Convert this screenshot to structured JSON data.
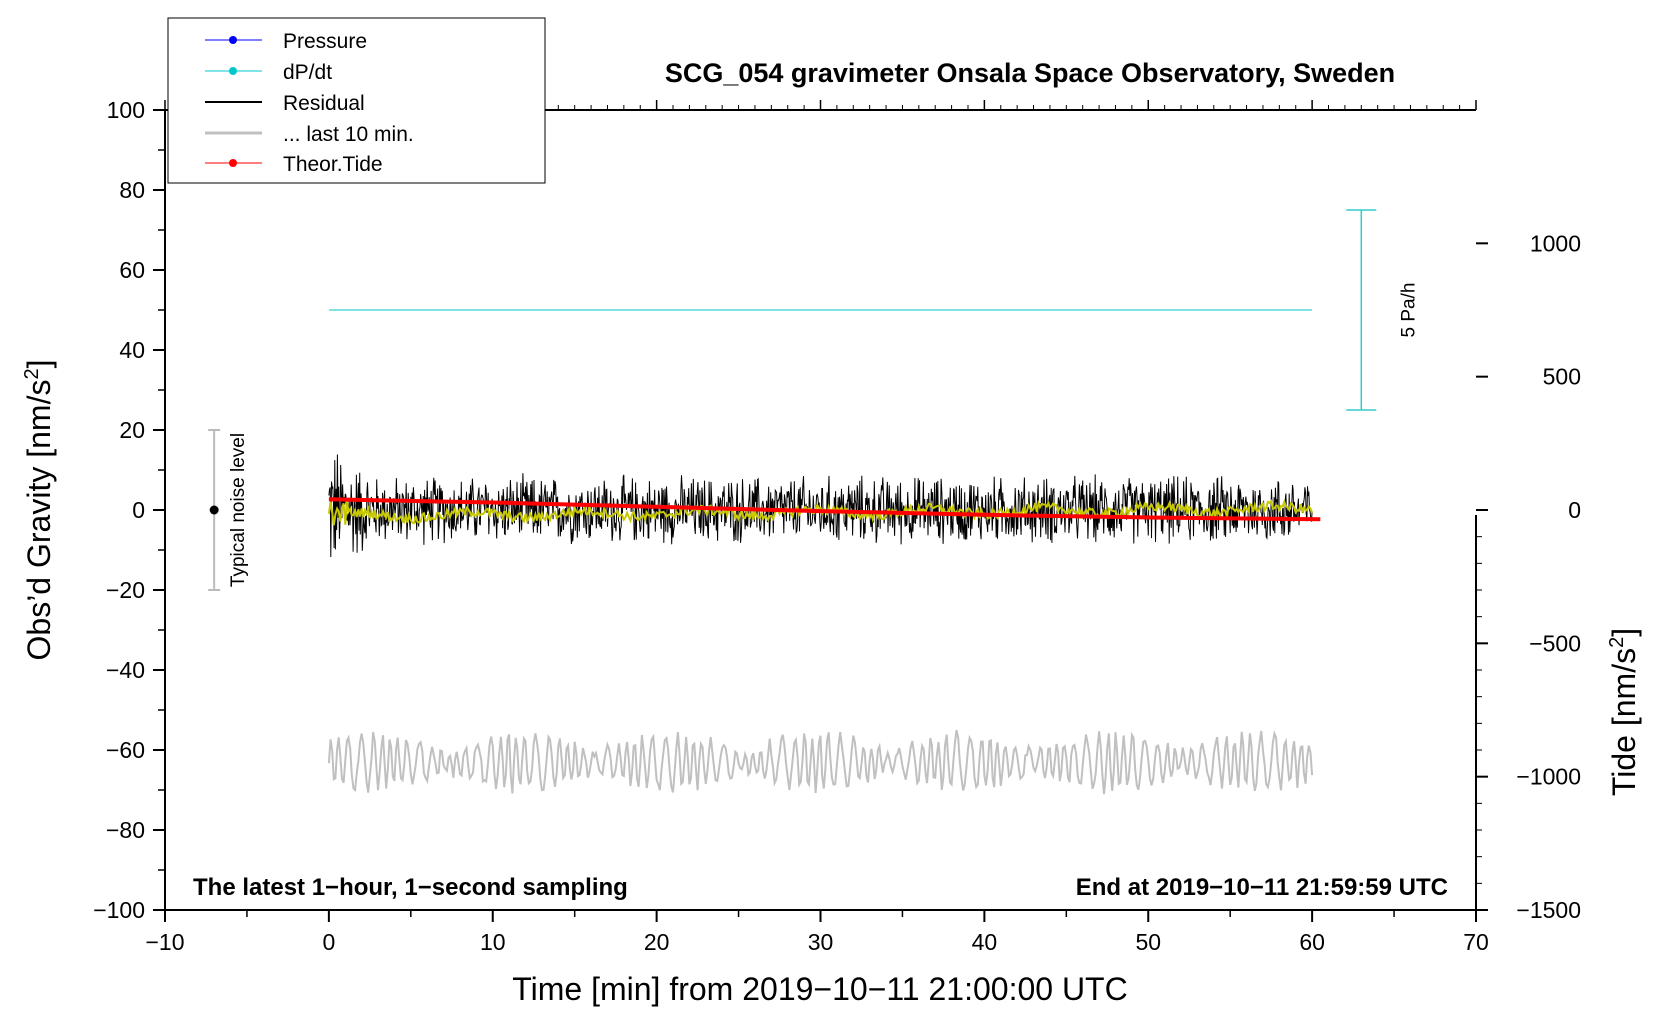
{
  "chart_data": {
    "type": "line",
    "title": "SCG_054 gravimeter Onsala Space Observatory, Sweden",
    "xlabel": "Time [min] from 2019−10−11 21:00:00 UTC",
    "ylabel_left": "Obs’d Gravity [nm/s",
    "ylabel_left_sup": "2",
    "ylabel_left_end": "]",
    "ylabel_right": "Tide [nm/s",
    "ylabel_right_sup": "2",
    "ylabel_right_end": "]",
    "xlim": [
      -10,
      70
    ],
    "ylim_left": [
      -100,
      100
    ],
    "ylim_right": [
      -1500,
      1500
    ],
    "x_ticks": [
      -10,
      0,
      10,
      20,
      30,
      40,
      50,
      60,
      70
    ],
    "x_tick_labels": [
      "−10",
      "0",
      "10",
      "20",
      "30",
      "40",
      "50",
      "60",
      "70"
    ],
    "y_ticks_left": [
      -100,
      -80,
      -60,
      -40,
      -20,
      0,
      20,
      40,
      60,
      80,
      100
    ],
    "y_tick_labels_left": [
      "−100",
      "−80",
      "−60",
      "−40",
      "−20",
      "0",
      "20",
      "40",
      "60",
      "80",
      "100"
    ],
    "y_ticks_right": [
      -1500,
      -1000,
      -500,
      0,
      500,
      1000
    ],
    "y_tick_labels_right": [
      "−1500",
      "−1000",
      "−500",
      "0",
      "500",
      "1000"
    ],
    "series": [
      {
        "name": "Pressure",
        "color": "#0000ff",
        "values": []
      },
      {
        "name": "dP/dt",
        "color": "#00c8c8",
        "x": [
          0,
          60
        ],
        "values": [
          50,
          50
        ]
      },
      {
        "name": "Residual",
        "color": "#000000",
        "x_range": [
          0,
          60
        ],
        "center": 0,
        "amplitude_approx": 8,
        "min": -17,
        "max": 16
      },
      {
        "name": "... last 10 min.",
        "color": "#c0c0c0",
        "x_range": [
          0,
          60
        ],
        "center": -63,
        "amplitude_approx": 7
      },
      {
        "name": "Theor.Tide",
        "color": "#ff0000",
        "axis": "right",
        "x": [
          0,
          10,
          20,
          30,
          40,
          50,
          60.5
        ],
        "values": [
          40,
          28,
          12,
          -4,
          -18,
          -28,
          -35
        ]
      }
    ],
    "smoothed_residual_color": "#c8c800",
    "legend_position": "top-left",
    "annotations": {
      "noise_label": "Typical noise level",
      "noise_bar": {
        "x": -7,
        "y": 0,
        "low": -20,
        "high": 20
      },
      "scale_label": "5 Pa/h",
      "scale_bar": {
        "x": 63,
        "low": 25,
        "high": 75
      },
      "bottom_left": "The latest 1−hour, 1−second sampling",
      "bottom_right": "End at 2019−10−11 21:59:59 UTC"
    }
  }
}
